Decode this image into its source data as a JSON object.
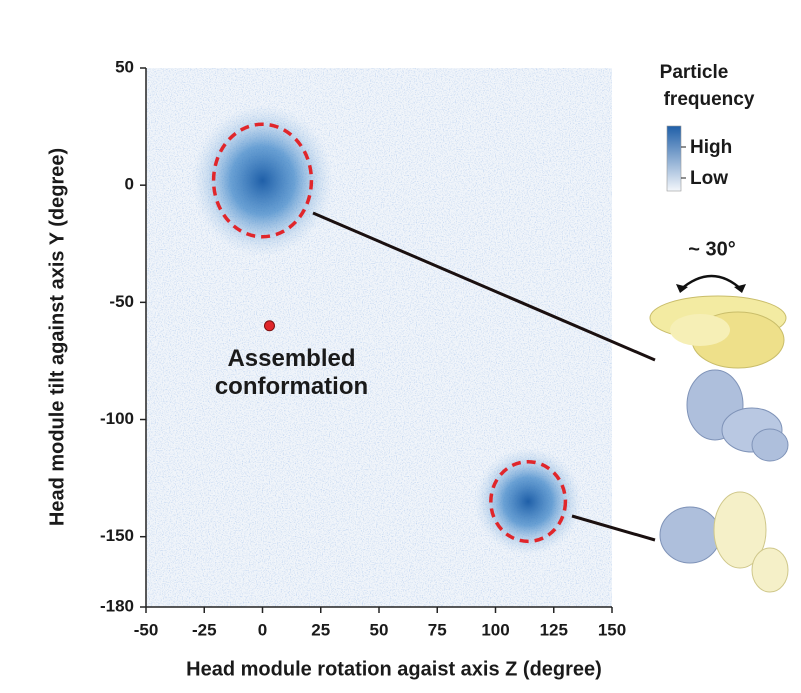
{
  "chart_data": {
    "type": "density",
    "xlabel": "Head module rotation agaist axis Z (degree)",
    "ylabel": "Head module tilt against axis Y (degree)",
    "xlim": [
      -50,
      150
    ],
    "xticks": [
      -50,
      -25,
      0,
      25,
      50,
      75,
      100,
      125,
      150
    ],
    "ylim": [
      -180,
      50
    ],
    "yticks": [
      -180,
      -150,
      -100,
      -50,
      0,
      50
    ],
    "color": "#1f5fa8",
    "circle_color": "#e0262b",
    "clusters": [
      {
        "x": 0,
        "y": 2,
        "rx": 21,
        "ry": 24
      },
      {
        "x": 114,
        "y": -135,
        "rx": 16,
        "ry": 17
      }
    ],
    "point": {
      "x": 3,
      "y": -60,
      "label": [
        "Assembled",
        "conformation"
      ]
    },
    "legend": {
      "title": [
        "Particle",
        "frequency"
      ],
      "high": "High",
      "low": "Low"
    },
    "rotation_label": "~ 30°"
  }
}
